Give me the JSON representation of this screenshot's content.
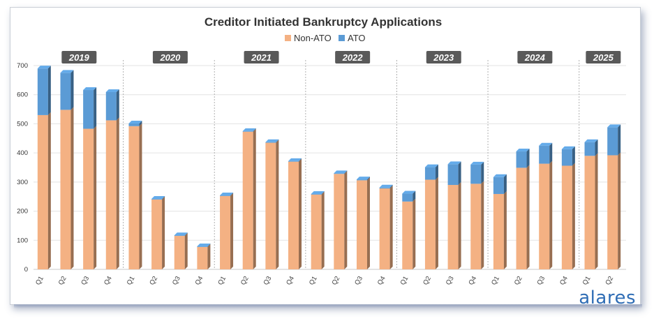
{
  "brand": {
    "logo_text": "alares"
  },
  "chart_data": {
    "type": "bar",
    "stacked": true,
    "three_d": true,
    "title": "Creditor Initiated Bankruptcy Applications",
    "legend": {
      "placement": "top-center",
      "entries": [
        "Non-ATO",
        "ATO"
      ]
    },
    "colors": {
      "Non-ATO": "#f4b183",
      "ATO": "#5b9bd5",
      "year_badge": "#595959",
      "separator": "#b0b0b0"
    },
    "ylim": [
      0,
      700
    ],
    "yticks": [
      0,
      100,
      200,
      300,
      400,
      500,
      600,
      700
    ],
    "grid": true,
    "categories": [
      "Q1",
      "Q2",
      "Q3",
      "Q4",
      "Q1",
      "Q2",
      "Q3",
      "Q4",
      "Q1",
      "Q2",
      "Q3",
      "Q4",
      "Q1",
      "Q2",
      "Q3",
      "Q4",
      "Q1",
      "Q2",
      "Q3",
      "Q4",
      "Q1",
      "Q2",
      "Q3",
      "Q4",
      "Q1",
      "Q2"
    ],
    "groups": [
      {
        "label": "2019",
        "count": 4
      },
      {
        "label": "2020",
        "count": 4
      },
      {
        "label": "2021",
        "count": 4
      },
      {
        "label": "2022",
        "count": 4
      },
      {
        "label": "2023",
        "count": 4
      },
      {
        "label": "2024",
        "count": 4
      },
      {
        "label": "2025",
        "count": 2
      }
    ],
    "series": [
      {
        "name": "Non-ATO",
        "values": [
          530,
          548,
          483,
          512,
          492,
          240,
          115,
          77,
          252,
          473,
          435,
          370,
          257,
          328,
          306,
          278,
          233,
          308,
          290,
          294,
          259,
          349,
          363,
          356,
          390,
          392
        ]
      },
      {
        "name": "ATO",
        "values": [
          160,
          127,
          133,
          97,
          9,
          2,
          2,
          2,
          2,
          2,
          2,
          2,
          2,
          2,
          3,
          3,
          27,
          43,
          71,
          66,
          58,
          56,
          62,
          57,
          47,
          96
        ]
      }
    ]
  }
}
